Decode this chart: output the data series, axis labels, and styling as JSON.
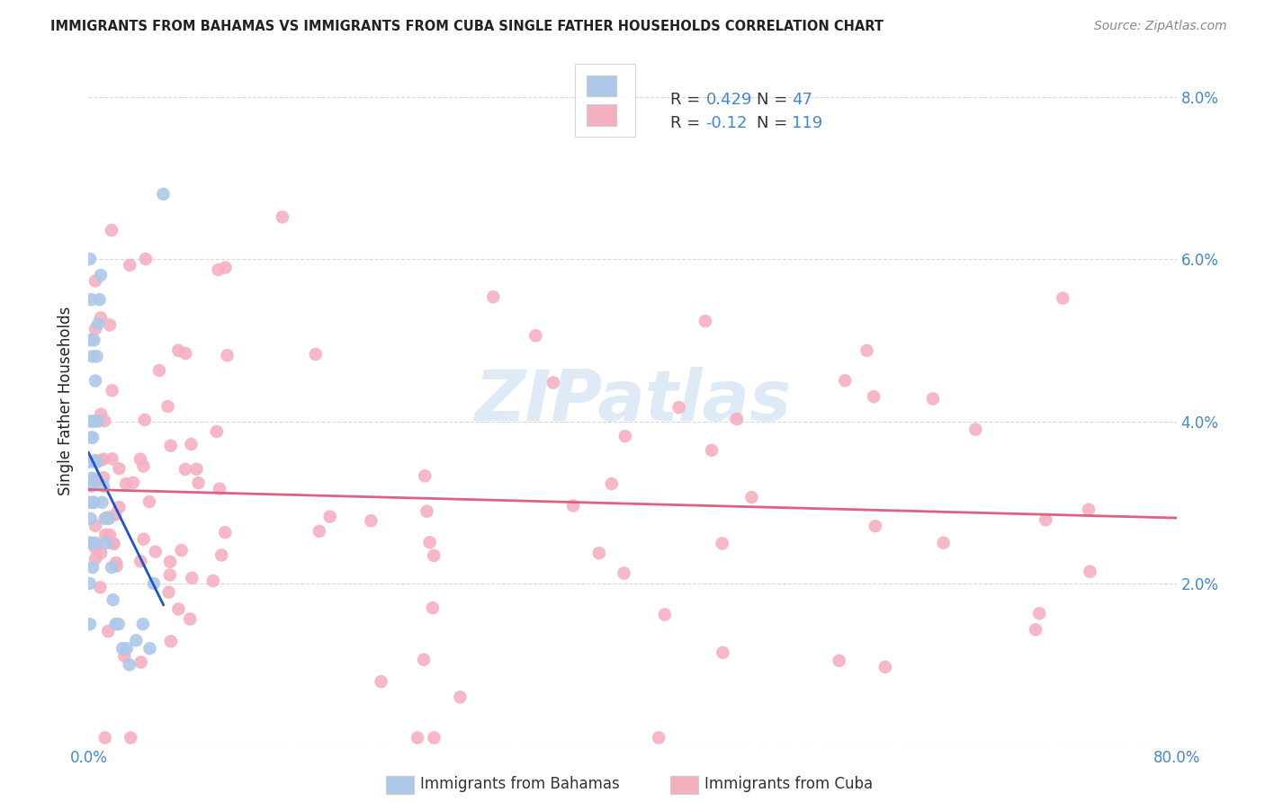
{
  "title": "IMMIGRANTS FROM BAHAMAS VS IMMIGRANTS FROM CUBA SINGLE FATHER HOUSEHOLDS CORRELATION CHART",
  "source": "Source: ZipAtlas.com",
  "ylabel": "Single Father Households",
  "xlim": [
    0.0,
    0.8
  ],
  "ylim": [
    0.0,
    0.085
  ],
  "y_tick_positions": [
    0.0,
    0.02,
    0.04,
    0.06,
    0.08
  ],
  "y_tick_labels": [
    "",
    "2.0%",
    "4.0%",
    "6.0%",
    "8.0%"
  ],
  "x_tick_positions": [
    0.0,
    0.1,
    0.2,
    0.3,
    0.4,
    0.5,
    0.6,
    0.7,
    0.8
  ],
  "x_tick_labels": [
    "0.0%",
    "",
    "",
    "",
    "",
    "",
    "",
    "",
    "80.0%"
  ],
  "bahamas_R": 0.429,
  "bahamas_N": 47,
  "cuba_R": -0.12,
  "cuba_N": 119,
  "bahamas_color": "#adc8e8",
  "cuba_color": "#f5b0c0",
  "trendline_bahamas_solid_color": "#1a56cc",
  "trendline_bahamas_dashed_color": "#88aadd",
  "trendline_cuba_color": "#e06080",
  "background_color": "#ffffff",
  "grid_color": "#d8d8d8",
  "watermark_color": "#c8dff0",
  "legend_edge_color": "#cccccc",
  "title_color": "#222222",
  "source_color": "#888888",
  "label_color": "#222222",
  "tick_color": "#4488cc",
  "R_color": "#4488cc",
  "N_color": "#4488cc"
}
